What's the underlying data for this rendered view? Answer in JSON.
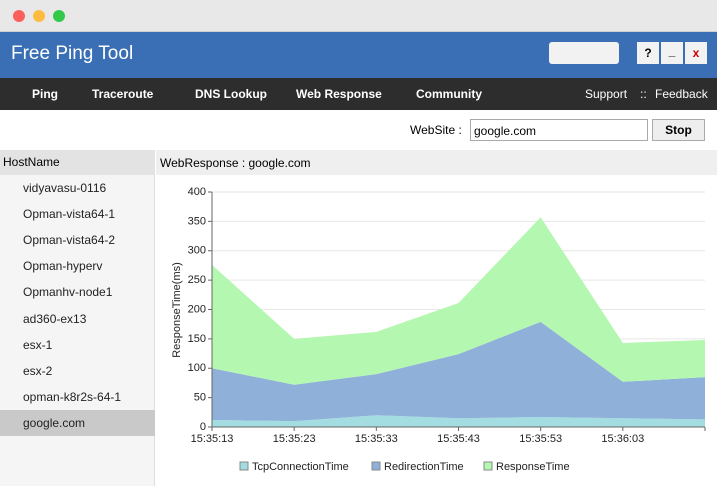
{
  "app": {
    "title": "Free Ping Tool",
    "window_buttons": [
      "?",
      "_",
      "x"
    ]
  },
  "nav": {
    "items": [
      "Ping",
      "Traceroute",
      "DNS Lookup",
      "Web Response",
      "Community"
    ],
    "support": "Support",
    "separator": "::",
    "feedback": "Feedback"
  },
  "toolbar": {
    "website_label": "WebSite :",
    "website_value": "google.com",
    "stop": "Stop"
  },
  "sidebar": {
    "header": "HostName",
    "hosts": [
      "vidyavasu-0116",
      "Opman-vista64-1",
      "Opman-vista64-2",
      "Opman-hyperv",
      "Opmanhv-node1",
      "ad360-ex13",
      "esx-1",
      "esx-2",
      "opman-k8r2s-64-1",
      "google.com"
    ],
    "selected": 9
  },
  "panel": {
    "title": "WebResponse : google.com"
  },
  "chart_data": {
    "type": "stacked-area",
    "y_label": "ResponseTime(ms)",
    "categories": [
      "15:35:13",
      "15:35:23",
      "15:35:33",
      "15:35:43",
      "15:35:53",
      "15:36:03",
      null
    ],
    "series": [
      {
        "name": "TcpConnectionTime",
        "color": "#a3dde2",
        "values": [
          12,
          10,
          20,
          15,
          17,
          15,
          13
        ]
      },
      {
        "name": "RedirectionTime",
        "color": "#8fb0d8",
        "values": [
          88,
          62,
          70,
          109,
          162,
          62,
          72
        ]
      },
      {
        "name": "ResponseTime",
        "color": "#b4f7b1",
        "values": [
          176,
          78,
          72,
          87,
          178,
          66,
          63
        ]
      }
    ],
    "ylim": [
      0,
      400
    ],
    "yticks": [
      0,
      50,
      100,
      150,
      200,
      250,
      300,
      350,
      400
    ],
    "grid": true
  }
}
